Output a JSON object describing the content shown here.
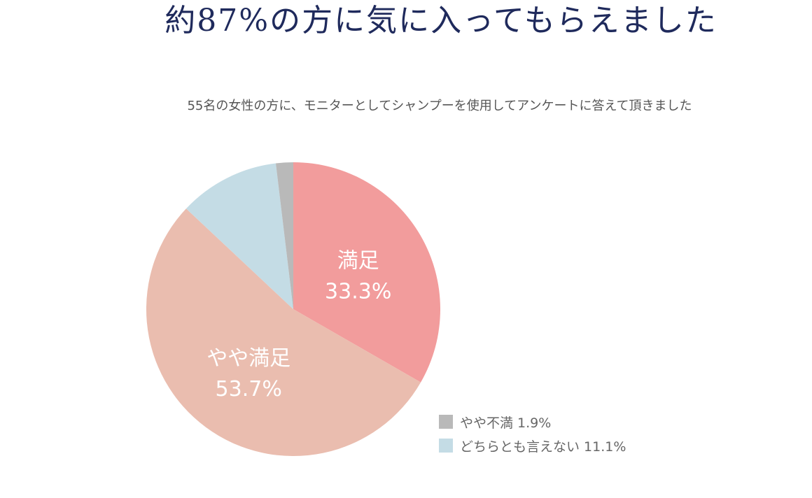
{
  "header": {
    "title": "約87%の方に気に入ってもらえました",
    "subtitle": "55名の女性の方に、モニターとしてシャンプーを使用してアンケートに答えて頂きました"
  },
  "chart_data": {
    "type": "pie",
    "slices": [
      {
        "name": "満足",
        "value": 33.3,
        "label_line1": "満足",
        "label_line2": "33.3%",
        "color": "#f29c9c"
      },
      {
        "name": "やや満足",
        "value": 53.7,
        "label_line1": "やや満足",
        "label_line2": "53.7%",
        "color": "#eabdaf"
      },
      {
        "name": "どちらとも言えない",
        "value": 11.1,
        "color": "#c4dce5"
      },
      {
        "name": "やや不満",
        "value": 1.9,
        "color": "#b9b9b9"
      }
    ],
    "legend": [
      {
        "text": "やや不満 1.9%",
        "color": "#b9b9b9"
      },
      {
        "text": "どちらとも言えない 11.1%",
        "color": "#c4dce5"
      }
    ],
    "legend_position": "bottom-right"
  }
}
